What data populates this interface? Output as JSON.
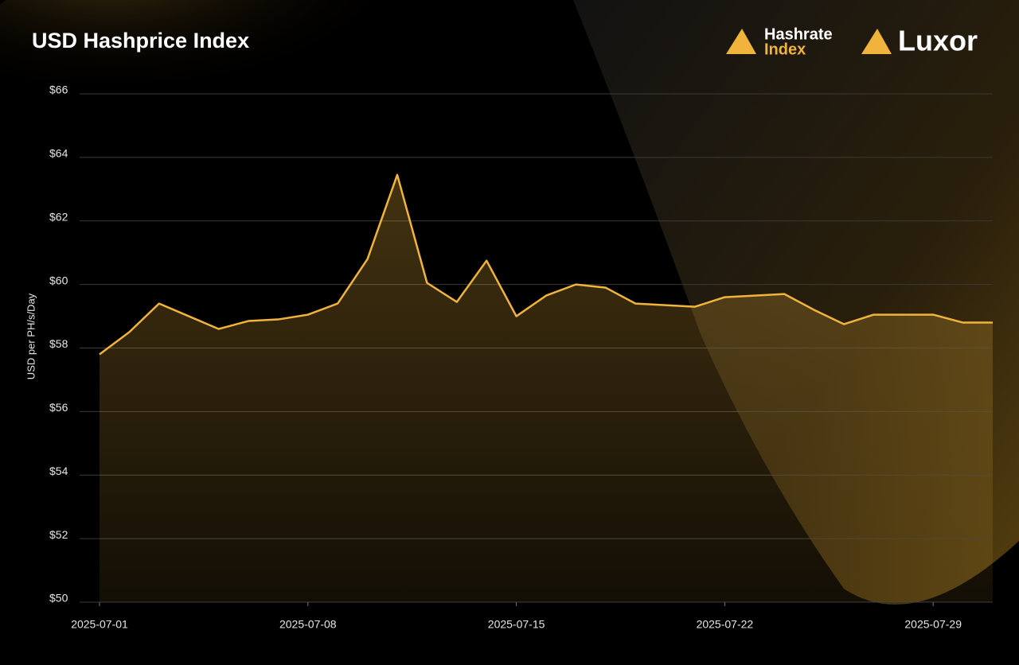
{
  "chart_data": {
    "type": "area",
    "title": "USD Hashprice Index",
    "brands": [
      "Hashrate",
      "Index",
      "Luxor"
    ],
    "y_label": "USD per PH/s/Day",
    "x": [
      "2025-07-01",
      "2025-07-02",
      "2025-07-03",
      "2025-07-04",
      "2025-07-05",
      "2025-07-06",
      "2025-07-07",
      "2025-07-08",
      "2025-07-09",
      "2025-07-10",
      "2025-07-11",
      "2025-07-12",
      "2025-07-13",
      "2025-07-14",
      "2025-07-15",
      "2025-07-16",
      "2025-07-17",
      "2025-07-18",
      "2025-07-19",
      "2025-07-20",
      "2025-07-21",
      "2025-07-22",
      "2025-07-23",
      "2025-07-24",
      "2025-07-25",
      "2025-07-26",
      "2025-07-27",
      "2025-07-28",
      "2025-07-29",
      "2025-07-30",
      "2025-07-31"
    ],
    "values": [
      57.8,
      58.5,
      59.4,
      59.0,
      58.6,
      58.85,
      58.9,
      59.05,
      59.4,
      60.8,
      63.45,
      60.05,
      59.45,
      60.75,
      59.0,
      59.65,
      60.0,
      59.9,
      59.4,
      59.35,
      59.3,
      59.6,
      59.65,
      59.7,
      59.2,
      58.75,
      59.05,
      59.05,
      59.05,
      58.8,
      58.8
    ],
    "color": "#f0b43c",
    "xlim": [
      "2025-07-01",
      "2025-07-31"
    ],
    "xticks": [
      "2025-07-01",
      "2025-07-08",
      "2025-07-15",
      "2025-07-22",
      "2025-07-29"
    ],
    "ylim": [
      50,
      66
    ],
    "yticks": [
      {
        "value": 50,
        "label": "$50"
      },
      {
        "value": 52,
        "label": "$52"
      },
      {
        "value": 54,
        "label": "$54"
      },
      {
        "value": 56,
        "label": "$56"
      },
      {
        "value": 58,
        "label": "$58"
      },
      {
        "value": 60,
        "label": "$60"
      },
      {
        "value": 62,
        "label": "$62"
      },
      {
        "value": 64,
        "label": "$64"
      },
      {
        "value": 66,
        "label": "$66"
      }
    ],
    "grid": true
  }
}
